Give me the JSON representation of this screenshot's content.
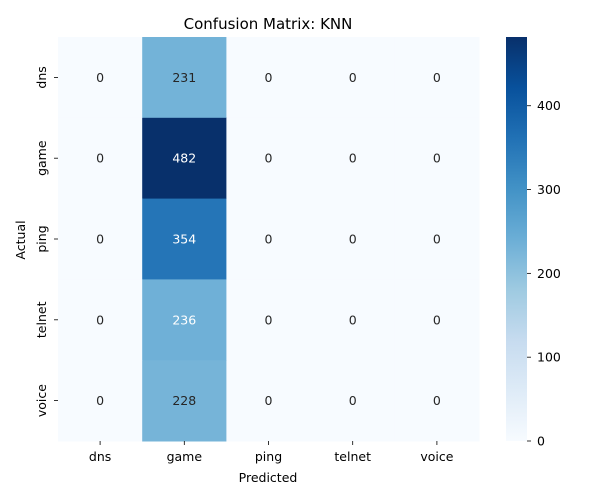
{
  "chart_data": {
    "type": "heatmap",
    "title": "Confusion Matrix: KNN",
    "xlabel": "Predicted",
    "ylabel": "Actual",
    "x_categories": [
      "dns",
      "game",
      "ping",
      "telnet",
      "voice"
    ],
    "y_categories": [
      "dns",
      "game",
      "ping",
      "telnet",
      "voice"
    ],
    "values": [
      [
        0,
        231,
        0,
        0,
        0
      ],
      [
        0,
        482,
        0,
        0,
        0
      ],
      [
        0,
        354,
        0,
        0,
        0
      ],
      [
        0,
        236,
        0,
        0,
        0
      ],
      [
        0,
        228,
        0,
        0,
        0
      ]
    ],
    "colormap": "Blues",
    "vmin": 0,
    "vmax": 482,
    "colorbar_ticks": [
      0,
      100,
      200,
      300,
      400
    ],
    "annotations": true,
    "grid": false
  }
}
